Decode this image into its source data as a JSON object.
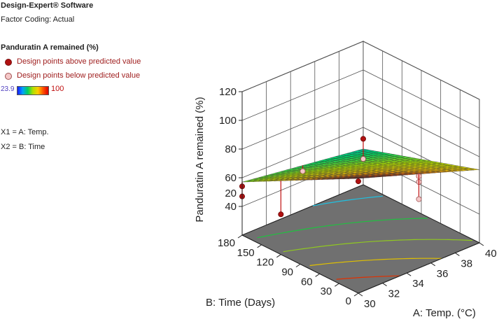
{
  "header": {
    "software": "Design-Expert® Software",
    "factor_coding": "Factor Coding: Actual"
  },
  "legend": {
    "response": "Panduratin A remained (%)",
    "above_label": "Design points above predicted value",
    "below_label": "Design points below predicted value",
    "above_color": "#b01010",
    "below_color": "#f4c8c8",
    "range_min": "23.9",
    "range_max": "100"
  },
  "factors": {
    "x1": "X1 = A: Temp.",
    "x2": "X2 = B: Time"
  },
  "chart_data": {
    "type": "surface",
    "zlabel": "Panduratin A remained (%)",
    "xlabel": "A: Temp. (°C)",
    "ylabel": "B: Time (Days)",
    "xlim": [
      30,
      40
    ],
    "ylim": [
      0,
      180
    ],
    "zlim": [
      20,
      120
    ],
    "x_ticks": [
      "30",
      "32",
      "34",
      "36",
      "38",
      "40"
    ],
    "y_ticks": [
      "0",
      "30",
      "60",
      "90",
      "120",
      "150",
      "180"
    ],
    "z_ticks": [
      "20",
      "40",
      "60",
      "80",
      "100",
      "120"
    ],
    "surface_corners": [
      {
        "temp": 30,
        "time": 0,
        "value": 100
      },
      {
        "temp": 40,
        "time": 0,
        "value": 71
      },
      {
        "temp": 30,
        "time": 180,
        "value": 57
      },
      {
        "temp": 40,
        "time": 180,
        "value": 45
      }
    ],
    "design_points": [
      {
        "temp": 30,
        "time": 0,
        "value": 98,
        "position": "above"
      },
      {
        "temp": 30,
        "time": 180,
        "value": 54,
        "position": "above"
      },
      {
        "temp": 30,
        "time": 180,
        "value": 47,
        "position": "above"
      },
      {
        "temp": 30,
        "time": 120,
        "value": 48,
        "position": "above"
      },
      {
        "temp": 35,
        "time": 0,
        "value": 80,
        "position": "below"
      },
      {
        "temp": 35,
        "time": 0,
        "value": 84,
        "position": "below"
      },
      {
        "temp": 35,
        "time": 0,
        "value": 68,
        "position": "below"
      },
      {
        "temp": 40,
        "time": 180,
        "value": 52,
        "position": "above"
      },
      {
        "temp": 40,
        "time": 180,
        "value": 38,
        "position": "below"
      },
      {
        "temp": 35,
        "time": 180,
        "value": 47,
        "position": "below"
      }
    ],
    "contours": [
      {
        "value": 50,
        "color": "#20c0e0"
      },
      {
        "value": 60,
        "color": "#20c040"
      },
      {
        "value": 70,
        "color": "#90c820"
      },
      {
        "value": 80,
        "color": "#e0c000"
      },
      {
        "value": 90,
        "color": "#e03000"
      }
    ],
    "grid": true
  }
}
